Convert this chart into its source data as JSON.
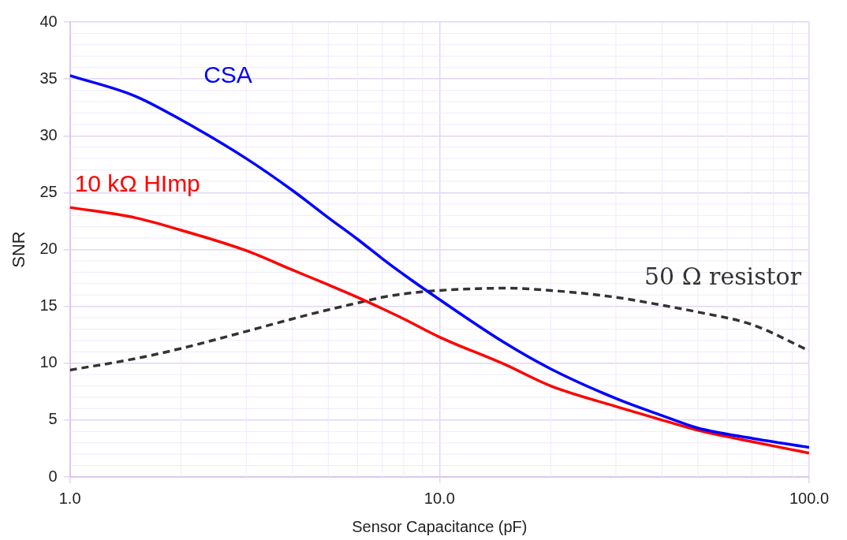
{
  "chart_data": {
    "type": "line",
    "xlabel": "Sensor Capacitance (pF)",
    "ylabel": "SNR",
    "log": "x",
    "grid": true,
    "legend": false,
    "marker": "none",
    "x": [
      1,
      1.5,
      2,
      3,
      4,
      5,
      6,
      7,
      8,
      10,
      15,
      20,
      30,
      40,
      50,
      70,
      100
    ],
    "xlim": [
      1,
      100
    ],
    "xticks": [
      {
        "value": 1,
        "label": "1.0"
      },
      {
        "value": 10,
        "label": "10.0"
      },
      {
        "value": 100,
        "label": "100.0"
      }
    ],
    "ylim": [
      0,
      40
    ],
    "yticks": [
      0,
      5,
      10,
      15,
      20,
      25,
      30,
      35,
      40
    ],
    "series": [
      {
        "name": "CSA",
        "color": "#0000ff",
        "line_style": "solid",
        "values": [
          35.3,
          33.5,
          31.4,
          28.0,
          25.2,
          22.8,
          20.9,
          19.2,
          17.8,
          15.6,
          11.8,
          9.5,
          6.9,
          5.4,
          4.3,
          3.4,
          2.6
        ]
      },
      {
        "name": "10 kΩ HImp",
        "color": "#ff0000",
        "line_style": "solid",
        "values": [
          23.7,
          22.8,
          21.7,
          19.9,
          18.2,
          16.9,
          15.8,
          14.8,
          13.9,
          12.3,
          9.9,
          8.0,
          6.2,
          5.0,
          4.1,
          3.1,
          2.1
        ]
      },
      {
        "name": "50 Ω resistor",
        "color": "#333333",
        "line_style": "dashed",
        "values": [
          9.4,
          10.4,
          11.3,
          12.8,
          13.9,
          14.7,
          15.3,
          15.8,
          16.1,
          16.4,
          16.6,
          16.4,
          15.8,
          15.1,
          14.5,
          13.4,
          11.1
        ]
      }
    ]
  }
}
